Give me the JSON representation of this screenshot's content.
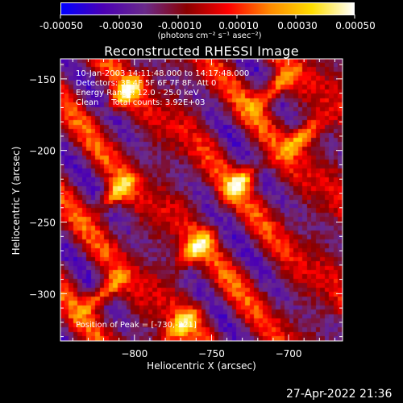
{
  "colorbar": {
    "tick_labels": [
      "-0.00050",
      "-0.00030",
      "-0.00010",
      "0.00010",
      "0.00030",
      "0.00050"
    ],
    "tick_values": [
      -0.0005,
      -0.0003,
      -0.0001,
      0.0001,
      0.0003,
      0.0005
    ],
    "range": [
      -0.0005,
      0.0005
    ],
    "unit_label": "(photons cm⁻² s⁻¹ asec⁻²)",
    "colors": [
      "#0000ff",
      "#4b00b4",
      "#6a2a8a",
      "#8a0000",
      "#ff0000",
      "#ff8a00",
      "#ffdd00",
      "#ffffff"
    ]
  },
  "chart_data": {
    "type": "heatmap",
    "title": "Reconstructed RHESSI Image",
    "xlabel": "Heliocentric X (arcsec)",
    "ylabel": "Heliocentric Y (arcsec)",
    "xlim": [
      -848,
      -665
    ],
    "ylim": [
      -333,
      -136
    ],
    "xticks": [
      -800,
      -750,
      -700
    ],
    "yticks": [
      -150,
      -200,
      -250,
      -300
    ],
    "xtick_labels": [
      "−800",
      "−750",
      "−700"
    ],
    "ytick_labels": [
      "−150",
      "−200",
      "−250",
      "−300"
    ],
    "annotation_lines": [
      "10-Jan-2003 14:11:48.000 to 14:17:48.000",
      "Detectors: 3F 4F 5F 6F 7F 8F, Att 0",
      "Energy Range: 12.0 - 25.0 keV",
      "Clean     Total counts: 3.92E+03"
    ],
    "peak_label": "Position of Peak = [-730,-221]",
    "peak": [
      -730,
      -221
    ],
    "bright_ridges": [
      {
        "x": -805,
        "y": -160
      },
      {
        "x": -812,
        "y": -230
      },
      {
        "x": -760,
        "y": -268
      },
      {
        "x": -730,
        "y": -221
      },
      {
        "x": -710,
        "y": -158
      },
      {
        "x": -690,
        "y": -190
      },
      {
        "x": -820,
        "y": -300
      },
      {
        "x": -770,
        "y": -323
      }
    ]
  },
  "footer": {
    "date": "27-Apr-2022 21:36"
  }
}
